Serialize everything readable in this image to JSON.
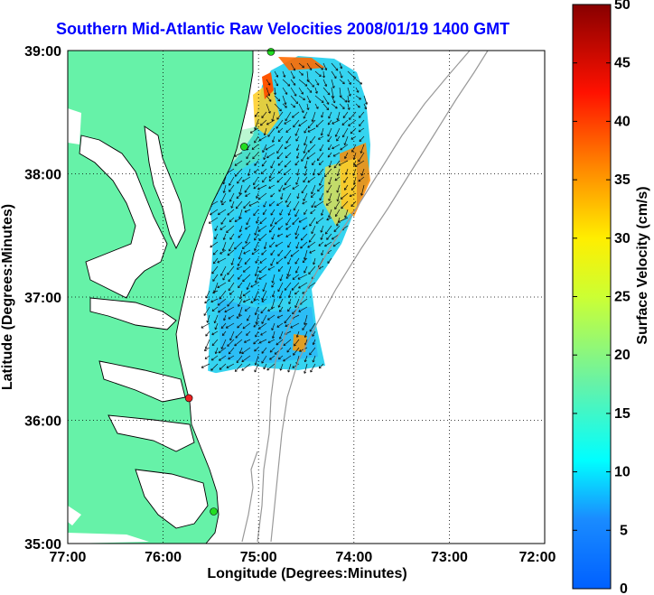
{
  "title": "Southern Mid-Atlantic Raw Velocities 2008/01/19 1400 GMT",
  "map": {
    "xlabel": "Longitude (Degrees:Minutes)",
    "ylabel": "Latitude (Degrees:Minutes)",
    "x_ticks": [
      "77:00",
      "76:00",
      "75:00",
      "74:00",
      "73:00",
      "72:00"
    ],
    "y_ticks": [
      "39:00",
      "38:00",
      "37:00",
      "36:00",
      "35:00"
    ],
    "lon_range": [
      -77,
      -72
    ],
    "lat_range": [
      35,
      39
    ],
    "grid": true,
    "land_color": "#66f2a8",
    "stations": [
      {
        "lon": -74.87,
        "lat": 38.99,
        "color": "#22dd22"
      },
      {
        "lon": -75.15,
        "lat": 38.22,
        "color": "#22dd22"
      },
      {
        "lon": -75.73,
        "lat": 36.18,
        "color": "#ee2222"
      },
      {
        "lon": -75.47,
        "lat": 35.26,
        "color": "#22dd22"
      }
    ]
  },
  "colorbar": {
    "label": "Surface Velocity (cm/s)",
    "ticks": [
      "50",
      "45",
      "40",
      "35",
      "30",
      "25",
      "20",
      "15",
      "10",
      "5",
      "0"
    ],
    "range": [
      0,
      50
    ]
  }
}
